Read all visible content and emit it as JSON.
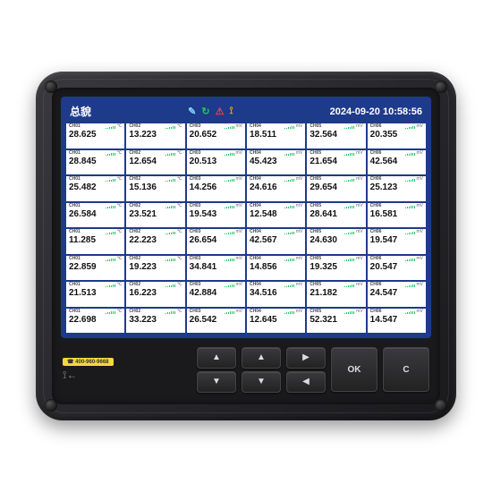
{
  "header": {
    "title": "总貌",
    "datetime": "2024-09-20 10:58:56"
  },
  "hotline": "☎ 400-960-9668",
  "buttons": {
    "ok": "OK",
    "c": "C"
  },
  "columns": [
    "CH01",
    "CH02",
    "CH03",
    "CH04",
    "CH05",
    "CH06"
  ],
  "units": [
    "℃",
    "℃",
    "mV",
    "mV",
    "mV",
    "mV"
  ],
  "rows": [
    [
      "28.625",
      "13.223",
      "20.652",
      "18.511",
      "32.564",
      "20.355"
    ],
    [
      "28.845",
      "12.654",
      "20.513",
      "45.423",
      "21.654",
      "42.564"
    ],
    [
      "25.482",
      "15.136",
      "14.256",
      "24.616",
      "29.654",
      "25.123"
    ],
    [
      "26.584",
      "23.521",
      "19.543",
      "12.548",
      "28.641",
      "16.581"
    ],
    [
      "11.285",
      "22.223",
      "26.654",
      "42.567",
      "24.630",
      "19.547"
    ],
    [
      "22.859",
      "19.223",
      "34.841",
      "14.856",
      "19.325",
      "20.547"
    ],
    [
      "21.513",
      "16.223",
      "42.884",
      "34.516",
      "21.182",
      "24.547"
    ],
    [
      "22.698",
      "33.223",
      "26.542",
      "12.645",
      "52.321",
      "14.547"
    ]
  ],
  "colors": {
    "screen_bg": "#1e3a8a",
    "cell_bg": "#ffffff",
    "bar": "#22c55e"
  }
}
